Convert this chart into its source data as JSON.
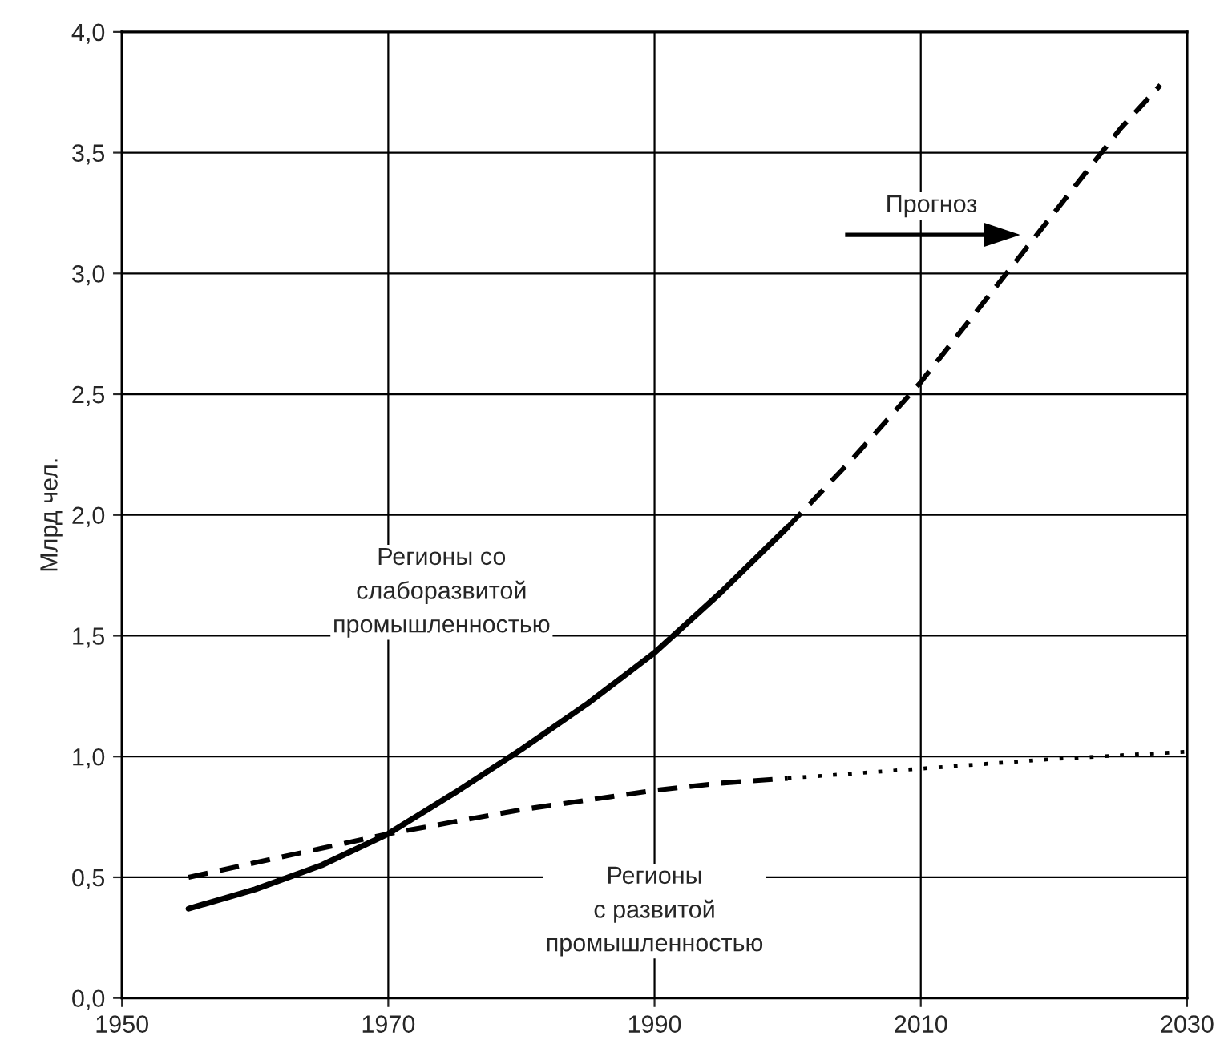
{
  "chart_data": {
    "type": "line",
    "ylabel": "Млрд чел.",
    "xlim": [
      1950,
      2030
    ],
    "xticks": [
      1950,
      1970,
      1990,
      2010,
      2030
    ],
    "ylim": [
      0,
      4
    ],
    "yticks": [
      {
        "value": 0,
        "label": "0,0"
      },
      {
        "value": 0.5,
        "label": "0,5"
      },
      {
        "value": 1,
        "label": "1,0"
      },
      {
        "value": 1.5,
        "label": "1,5"
      },
      {
        "value": 2,
        "label": "2,0"
      },
      {
        "value": 2.5,
        "label": "2,5"
      },
      {
        "value": 3,
        "label": "3,0"
      },
      {
        "value": 3.5,
        "label": "3,5"
      },
      {
        "value": 4,
        "label": "4,0"
      }
    ],
    "grid": true,
    "legend": false,
    "marker": "none",
    "series": [
      {
        "color": "#000000",
        "line_style": "solid",
        "x": [
          1955,
          1960,
          1965,
          1970,
          1975,
          1980,
          1985,
          1990,
          1995,
          2000
        ],
        "values": [
          0.37,
          0.45,
          0.55,
          0.68,
          0.85,
          1.03,
          1.22,
          1.43,
          1.68,
          1.95
        ]
      },
      {
        "color": "#000000",
        "line_style": "dashed",
        "x": [
          2000,
          2005,
          2010,
          2015,
          2020,
          2025,
          2028
        ],
        "values": [
          1.95,
          2.24,
          2.55,
          2.9,
          3.25,
          3.6,
          3.78
        ]
      },
      {
        "color": "#000000",
        "line_style": "dashed",
        "x": [
          1955,
          1960,
          1965,
          1970,
          1975,
          1980,
          1985,
          1990,
          1995,
          2000
        ],
        "values": [
          0.5,
          0.56,
          0.62,
          0.68,
          0.73,
          0.78,
          0.82,
          0.86,
          0.89,
          0.91
        ]
      },
      {
        "color": "#000000",
        "line_style": "dotted",
        "x": [
          2000,
          2010,
          2020,
          2030
        ],
        "values": [
          0.91,
          0.95,
          0.99,
          1.02
        ]
      }
    ],
    "annotations": [
      "Регионы со\nслаборазвитой\nпромышленностью",
      "Регионы\nс развитой\nпромышленностью",
      "Прогноз"
    ]
  }
}
